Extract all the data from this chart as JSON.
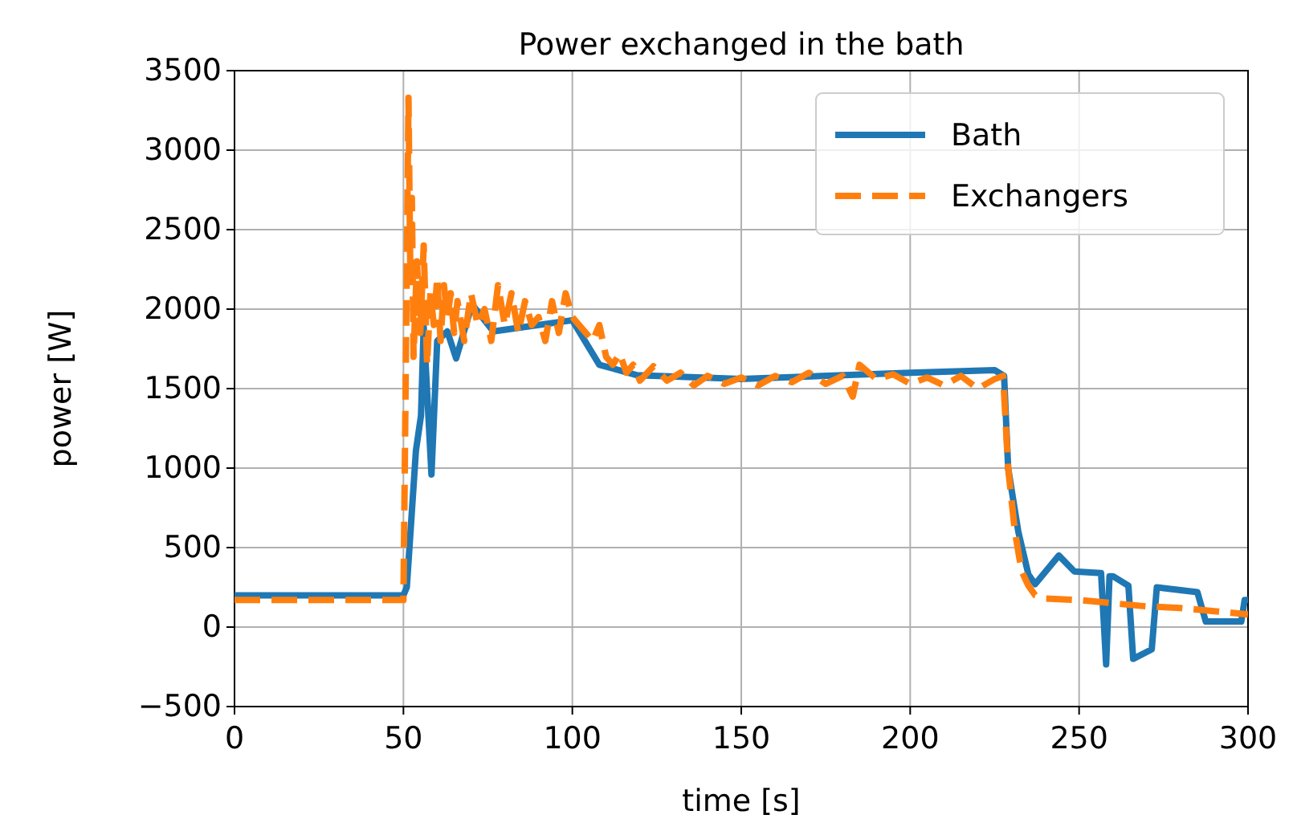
{
  "chart_data": {
    "type": "line",
    "title": "Power exchanged in the bath",
    "xlabel": "time [s]",
    "ylabel": "power [W]",
    "xlim": [
      0,
      300
    ],
    "xticks": [
      0,
      50,
      100,
      150,
      200,
      250,
      300
    ],
    "ylim": [
      -500,
      3500
    ],
    "yticks": [
      {
        "value": -500,
        "label": "−500"
      },
      0,
      500,
      1000,
      1500,
      2000,
      2500,
      3000,
      3500
    ],
    "grid": true,
    "legend": "top right",
    "marker": "none",
    "series": [
      {
        "name": "Bath",
        "color": "#1f77b4",
        "line_style": "solid",
        "x": [
          0,
          50,
          51,
          53.7,
          55.2,
          56,
          58.3,
          60,
          63,
          65.6,
          70.3,
          76.6,
          90,
          100,
          108,
          119,
          150,
          200,
          225,
          227.8,
          229,
          232,
          235,
          237,
          244,
          248.6,
          256.5,
          258,
          259,
          260,
          264.6,
          266,
          271.5,
          273,
          285,
          287.5,
          298,
          299,
          300
        ],
        "values": [
          200,
          200,
          250,
          1110,
          1330,
          1890,
          960,
          1800,
          1860,
          1690,
          2030,
          1860,
          1900,
          1930,
          1650,
          1585,
          1560,
          1600,
          1616,
          1580,
          1000,
          600,
          330,
          270,
          450,
          350,
          340,
          -235,
          320,
          320,
          260,
          -200,
          -140,
          250,
          220,
          35,
          35,
          170,
          170
        ]
      },
      {
        "name": "Exchangers",
        "color": "#ff7f0e",
        "line_style": "dashed",
        "x": [
          0,
          50,
          50.5,
          51.5,
          52,
          52.5,
          53,
          54,
          55,
          56,
          57,
          58,
          59,
          60,
          61,
          62,
          63,
          64,
          65,
          66,
          68,
          70,
          72,
          74,
          76,
          78,
          80,
          82,
          84,
          86,
          88,
          90,
          92,
          94,
          96,
          98,
          100,
          102,
          104,
          106,
          108,
          110,
          112,
          114,
          116,
          118,
          120,
          124,
          128,
          132,
          136,
          140,
          145,
          150,
          155,
          160,
          165,
          170,
          175,
          180,
          183,
          185,
          190,
          195,
          200,
          205,
          210,
          215,
          220,
          225,
          227.5,
          229,
          231,
          233,
          235,
          237,
          240,
          250,
          260,
          270,
          280,
          290,
          300
        ],
        "values": [
          170,
          170,
          1200,
          3330,
          2300,
          2700,
          1700,
          2300,
          1850,
          2400,
          1650,
          2100,
          1900,
          2200,
          1800,
          2150,
          1950,
          2100,
          1850,
          2050,
          1800,
          2100,
          1900,
          2000,
          1800,
          2150,
          1900,
          2100,
          1850,
          2050,
          1900,
          1950,
          1800,
          2050,
          1850,
          2100,
          1950,
          1900,
          1850,
          1800,
          1900,
          1700,
          1650,
          1720,
          1600,
          1650,
          1550,
          1640,
          1550,
          1600,
          1520,
          1580,
          1530,
          1570,
          1520,
          1580,
          1540,
          1600,
          1530,
          1580,
          1450,
          1650,
          1560,
          1590,
          1530,
          1570,
          1520,
          1580,
          1500,
          1560,
          1580,
          1000,
          600,
          350,
          260,
          200,
          180,
          170,
          150,
          130,
          120,
          100,
          80
        ]
      }
    ]
  }
}
